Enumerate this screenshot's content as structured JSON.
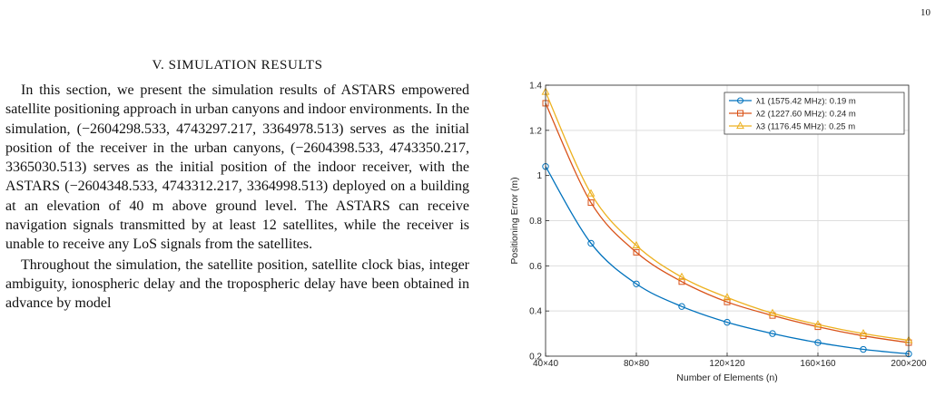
{
  "page_number": "10",
  "section": {
    "heading": "V. SIMULATION RESULTS"
  },
  "paragraphs": [
    "In this section, we present the simulation results of ASTARS empowered satellite positioning approach in ur­ban canyons and indoor environments. In the simula­tion, (−2604298.533, 4743297.217, 3364978.513) serves as the initial position of the receiver in the urban canyons, (−2604398.533, 4743350.217, 3365030.513) serves as the ini­tial position of the indoor receiver, with the ASTARS (−2604348.533, 4743312.217, 3364998.513) deployed on a building at an elevation of 40 m above ground level. The ASTARS can receive navigation signals transmitted by at least 12 satellites, while the receiver is unable to receive any LoS signals from the satellites.",
    "Throughout the simulation, the satellite position, satellite clock bias, integer ambiguity, ionospheric delay and the tro­pospheric delay have been obtained in advance by model"
  ],
  "colors": {
    "series_1": "#0072BD",
    "series_2": "#D95319",
    "series_3": "#EDB120",
    "grid": "#dedede",
    "axis": "#262626"
  },
  "chart_data": {
    "type": "line",
    "xlabel": "Number of Elements (n)",
    "ylabel": "Positioning Error (m)",
    "x": [
      40,
      60,
      80,
      100,
      120,
      140,
      160,
      180,
      200
    ],
    "xlim": [
      40,
      200
    ],
    "ylim": [
      0.2,
      1.4
    ],
    "x_ticks": [
      40,
      80,
      120,
      160,
      200
    ],
    "x_tick_labels": [
      "40×40",
      "80×80",
      "120×120",
      "160×160",
      "200×200"
    ],
    "y_ticks": [
      0.2,
      0.4,
      0.6,
      0.8,
      1.0,
      1.2,
      1.4
    ],
    "y_tick_labels": [
      "0.2",
      "0.4",
      "0.6",
      "0.8",
      "1",
      "1.2",
      "1.4"
    ],
    "grid": true,
    "legend_position": "top-right",
    "series": [
      {
        "name": "λ1 (1575.42 MHz): 0.19 m",
        "marker": "circle",
        "color_key": "series_1",
        "values": [
          1.04,
          0.7,
          0.52,
          0.42,
          0.35,
          0.3,
          0.26,
          0.23,
          0.21
        ]
      },
      {
        "name": "λ2 (1227.60 MHz): 0.24 m",
        "marker": "square",
        "color_key": "series_2",
        "values": [
          1.32,
          0.88,
          0.66,
          0.53,
          0.44,
          0.38,
          0.33,
          0.29,
          0.26
        ]
      },
      {
        "name": "λ3 (1176.45 MHz): 0.25 m",
        "marker": "triangle",
        "color_key": "series_3",
        "values": [
          1.37,
          0.92,
          0.69,
          0.55,
          0.46,
          0.39,
          0.34,
          0.3,
          0.27
        ]
      }
    ]
  }
}
